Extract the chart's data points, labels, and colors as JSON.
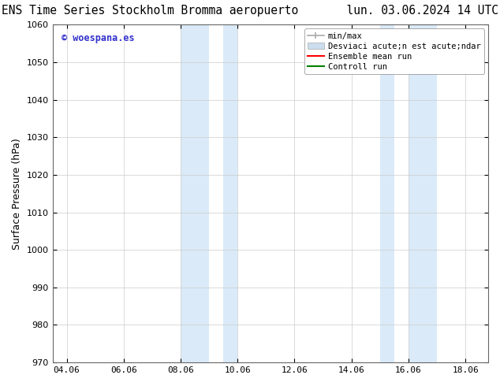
{
  "title_left": "ENS Time Series Stockholm Bromma aeropuerto",
  "title_right": "lun. 03.06.2024 14 UTC",
  "ylabel": "Surface Pressure (hPa)",
  "ylim": [
    970,
    1060
  ],
  "yticks": [
    970,
    980,
    990,
    1000,
    1010,
    1020,
    1030,
    1040,
    1050,
    1060
  ],
  "xlim_start": 3.5,
  "xlim_end": 18.8,
  "xtick_labels": [
    "04.06",
    "06.06",
    "08.06",
    "10.06",
    "12.06",
    "14.06",
    "16.06",
    "18.06"
  ],
  "xtick_positions": [
    4,
    6,
    8,
    10,
    12,
    14,
    16,
    18
  ],
  "shaded_bands": [
    {
      "xmin": 8.0,
      "xmax": 9.0
    },
    {
      "xmin": 9.5,
      "xmax": 10.0
    },
    {
      "xmin": 15.0,
      "xmax": 15.5
    },
    {
      "xmin": 16.0,
      "xmax": 17.0
    }
  ],
  "shade_color": "#daeaf8",
  "watermark_text": "© woespana.es",
  "watermark_color": "#3333cc",
  "legend_label_minmax": "min/max",
  "legend_label_std": "Desviaci acute;n est acute;ndar",
  "legend_label_ens": "Ensemble mean run",
  "legend_label_ctrl": "Controll run",
  "legend_color_minmax": "#aaaaaa",
  "legend_color_std": "#ccddee",
  "legend_color_ens": "#ff0000",
  "legend_color_ctrl": "#008000",
  "bg_color": "#ffffff",
  "grid_color": "#cccccc",
  "title_fontsize": 10.5,
  "label_fontsize": 9,
  "tick_fontsize": 8,
  "legend_fontsize": 7.5
}
